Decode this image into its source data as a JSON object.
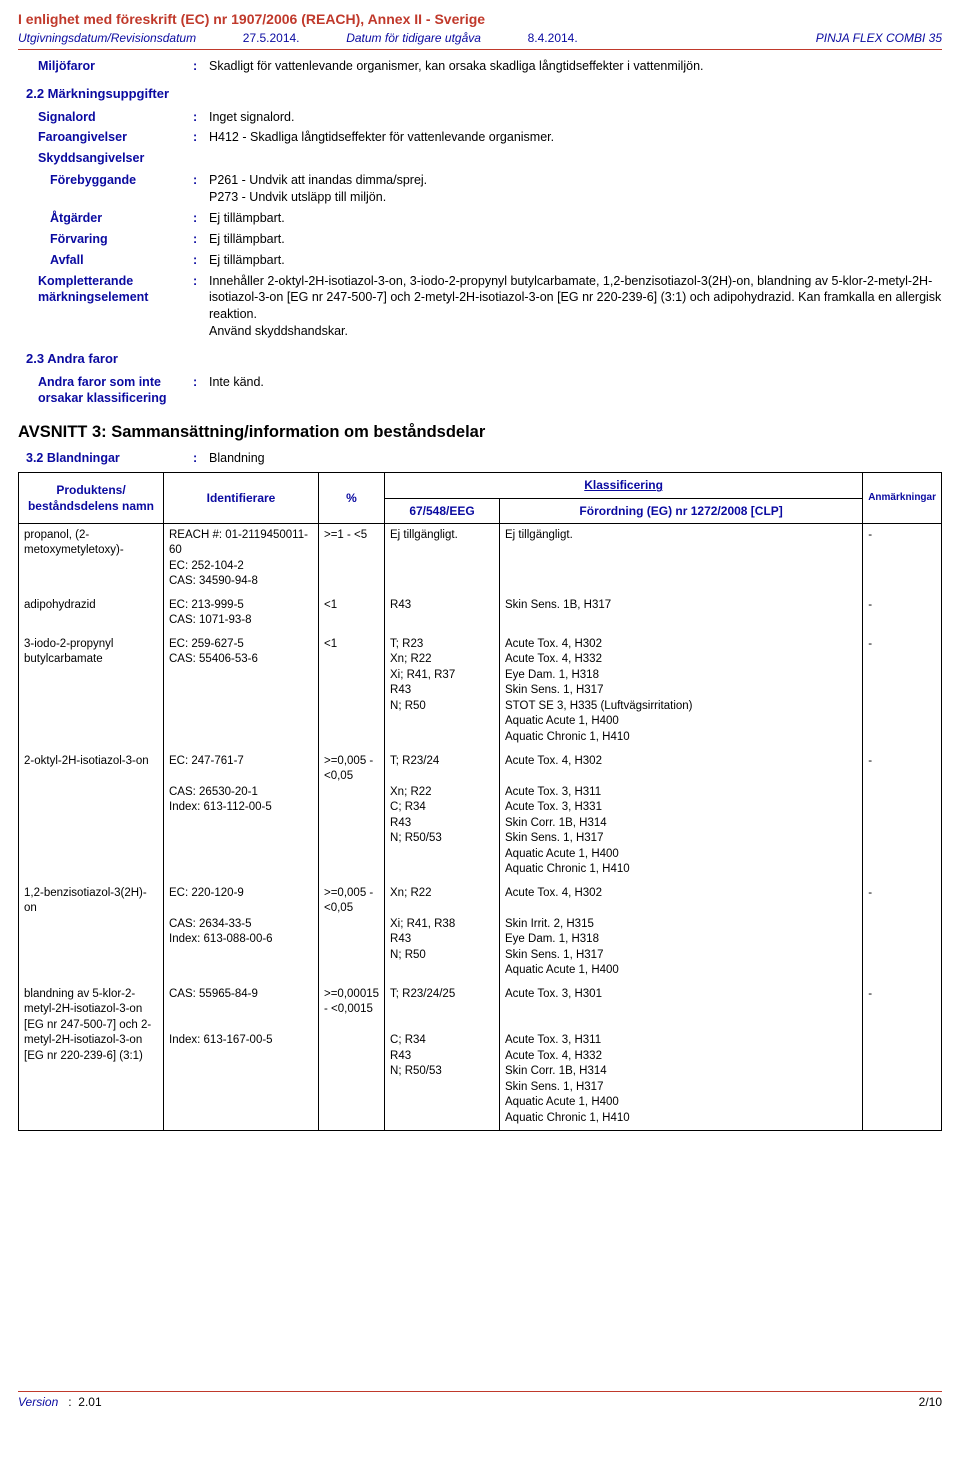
{
  "header": {
    "regulation": "I enlighet med föreskrift (EC) nr 1907/2006 (REACH), Annex II - Sverige",
    "date_label": "Utgivningsdatum/Revisionsdatum",
    "date_value": "27.5.2014.",
    "prev_label": "Datum för tidigare utgåva",
    "prev_value": "8.4.2014.",
    "product": "PINJA FLEX COMBI 35"
  },
  "miljofaror": {
    "label": "Miljöfaror",
    "value": "Skadligt för vattenlevande organismer, kan orsaka skadliga långtidseffekter i vattenmiljön."
  },
  "section22": {
    "title": "2.2 Märkningsuppgifter",
    "rows": [
      {
        "label": "Signalord",
        "value": "Inget signalord."
      },
      {
        "label": "Faroangivelser",
        "value": "H412 - Skadliga långtidseffekter för vattenlevande organismer."
      }
    ],
    "skydds_header": "Skyddsangivelser",
    "skydds_rows": [
      {
        "label": "Förebyggande",
        "value": "P261 - Undvik att inandas dimma/sprej.\nP273 - Undvik utsläpp till miljön."
      },
      {
        "label": "Åtgärder",
        "value": "Ej tillämpbart."
      },
      {
        "label": "Förvaring",
        "value": "Ej tillämpbart."
      },
      {
        "label": "Avfall",
        "value": "Ej tillämpbart."
      }
    ],
    "kompl": {
      "label": "Kompletterande märkningselement",
      "value": "Innehåller 2-oktyl-2H-isotiazol-3-on, 3-iodo-2-propynyl butylcarbamate, 1,2-benzisotiazol-3(2H)-on, blandning av 5-klor-2-metyl-2H-isotiazol-3-on [EG nr 247-500-7] och 2-metyl-2H-isotiazol-3-on [EG nr 220-239-6] (3:1) och adipohydrazid. Kan framkalla en allergisk reaktion.\nAnvänd skyddshandskar."
    }
  },
  "section23": {
    "title": "2.3 Andra faror",
    "label": "Andra faror som inte orsakar klassificering",
    "value": "Inte känd."
  },
  "avsnitt3": {
    "title": "AVSNITT 3: Sammansättning/information om beståndsdelar",
    "bland_label": "3.2 Blandningar",
    "bland_value": "Blandning"
  },
  "table": {
    "headers": {
      "name": "Produktens/\nbeståndsdelens namn",
      "id": "Identifierare",
      "pct": "%",
      "klass": "Klassificering",
      "col67": "67/548/EEG",
      "clp": "Förordning (EG) nr 1272/2008 [CLP]",
      "anm": "Anmärkningar"
    },
    "rows": [
      {
        "name": "propanol, (2-metoxymetyletoxy)-",
        "id": "REACH #: 01-2119450011-60\nEC: 252-104-2\nCAS: 34590-94-8",
        "pct": ">=1 - <5",
        "c67": "Ej tillgängligt.",
        "clp": "Ej tillgängligt.",
        "anm": "-"
      },
      {
        "name": "adipohydrazid",
        "id": "EC: 213-999-5\nCAS: 1071-93-8",
        "pct": "<1",
        "c67": "R43",
        "clp": "Skin Sens. 1B, H317",
        "anm": "-"
      },
      {
        "name": "3-iodo-2-propynyl butylcarbamate",
        "id": "EC: 259-627-5\nCAS: 55406-53-6",
        "pct": "<1",
        "c67": "T; R23\nXn; R22\nXi; R41, R37\nR43\nN; R50",
        "clp": "Acute Tox. 4, H302\nAcute Tox. 4, H332\nEye Dam. 1, H318\nSkin Sens. 1, H317\nSTOT SE 3, H335 (Luftvägsirritation)\nAquatic Acute 1, H400\nAquatic Chronic 1, H410",
        "anm": "-"
      },
      {
        "name": "2-oktyl-2H-isotiazol-3-on",
        "id": "EC: 247-761-7\n\nCAS: 26530-20-1\nIndex: 613-112-00-5",
        "pct": ">=0,005 - <0,05",
        "c67": "T; R23/24\n\nXn; R22\nC; R34\nR43\nN; R50/53",
        "clp": "Acute Tox. 4, H302\n\nAcute Tox. 3, H311\nAcute Tox. 3, H331\nSkin Corr. 1B, H314\nSkin Sens. 1, H317\nAquatic Acute 1, H400\nAquatic Chronic 1, H410",
        "anm": "-"
      },
      {
        "name": "1,2-benzisotiazol-3(2H)-on",
        "id": "EC: 220-120-9\n\nCAS: 2634-33-5\nIndex: 613-088-00-6",
        "pct": ">=0,005 - <0,05",
        "c67": "Xn; R22\n\nXi; R41, R38\nR43\nN; R50",
        "clp": "Acute Tox. 4, H302\n\nSkin Irrit. 2, H315\nEye Dam. 1, H318\nSkin Sens. 1, H317\nAquatic Acute 1, H400",
        "anm": "-"
      },
      {
        "name": "blandning av 5-klor-2-metyl-2H-isotiazol-3-on [EG nr 247-500-7] och 2-metyl-2H-isotiazol-3-on [EG nr 220-239-6] (3:1)",
        "id": "CAS: 55965-84-9\n\n\nIndex: 613-167-00-5",
        "pct": ">=0,00015 - <0,0015",
        "c67": "T; R23/24/25\n\n\nC; R34\nR43\nN; R50/53",
        "clp": "Acute Tox. 3, H301\n\n\nAcute Tox. 3, H311\nAcute Tox. 4, H332\nSkin Corr. 1B, H314\nSkin Sens. 1, H317\nAquatic Acute 1, H400\nAquatic Chronic 1, H410",
        "anm": "-"
      }
    ]
  },
  "footer": {
    "ver_label": "Version",
    "ver_value": "2.01",
    "page": "2/10"
  },
  "colors": {
    "red": "#c0392b",
    "blue": "#0a0aa0",
    "black": "#000000",
    "bg": "#ffffff"
  }
}
